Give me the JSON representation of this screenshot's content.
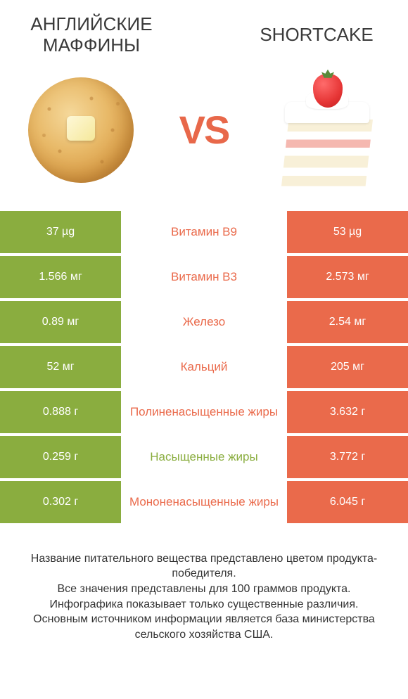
{
  "colors": {
    "left": "#8aad3f",
    "right": "#ea6a4b",
    "left_label": "#8aad3f",
    "right_label": "#ea6a4b"
  },
  "header": {
    "left_title": "АНГЛИЙСКИЕ МАФФИНЫ",
    "right_title": "SHORTCAKE",
    "vs": "VS"
  },
  "rows": [
    {
      "left": "37 µg",
      "label": "Витамин B9",
      "right": "53 µg",
      "winner": "right"
    },
    {
      "left": "1.566 мг",
      "label": "Витамин B3",
      "right": "2.573 мг",
      "winner": "right"
    },
    {
      "left": "0.89 мг",
      "label": "Железо",
      "right": "2.54 мг",
      "winner": "right"
    },
    {
      "left": "52 мг",
      "label": "Кальций",
      "right": "205 мг",
      "winner": "right"
    },
    {
      "left": "0.888 г",
      "label": "Полиненасыщенные жиры",
      "right": "3.632 г",
      "winner": "right"
    },
    {
      "left": "0.259 г",
      "label": "Насыщенные жиры",
      "right": "3.772 г",
      "winner": "left"
    },
    {
      "left": "0.302 г",
      "label": "Мононенасыщенные жиры",
      "right": "6.045 г",
      "winner": "right"
    }
  ],
  "footer": {
    "line1": "Название питательного вещества представлено цветом продукта-победителя.",
    "line2": "Все значения представлены для 100 граммов продукта.",
    "line3": "Инфографика показывает только существенные различия.",
    "line4": "Основным источником информации является база министерства сельского хозяйства США."
  }
}
